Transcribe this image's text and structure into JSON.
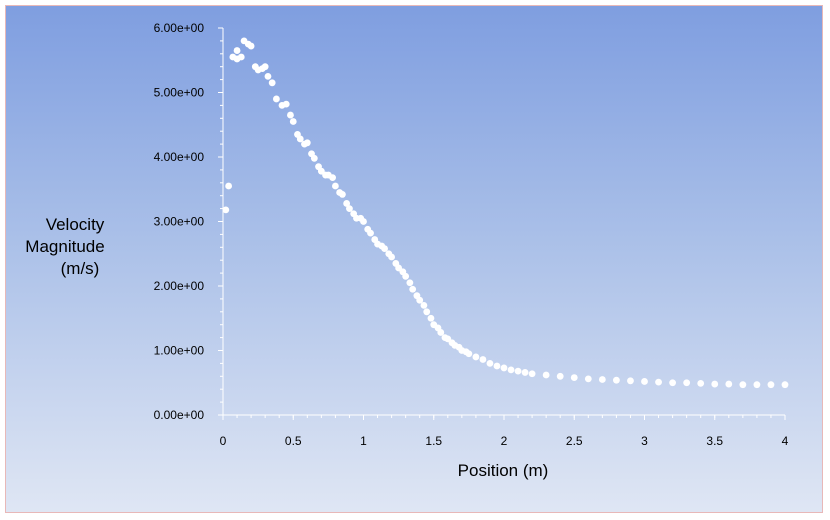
{
  "chart_data": {
    "type": "scatter",
    "xlabel": "Position (m)",
    "ylabel": [
      "Velocity",
      "Magnitude",
      "(m/s)"
    ],
    "xlim": [
      0,
      4
    ],
    "ylim": [
      0,
      6
    ],
    "x_ticks": [
      0,
      0.5,
      1,
      1.5,
      2,
      2.5,
      3,
      3.5,
      4
    ],
    "x_tick_labels": [
      "0",
      "0.5",
      "1",
      "1.5",
      "2",
      "2.5",
      "3",
      "3.5",
      "4"
    ],
    "y_ticks": [
      0,
      1,
      2,
      3,
      4,
      5,
      6
    ],
    "y_tick_labels": [
      "0.00e+00",
      "1.00e+00",
      "2.00e+00",
      "3.00e+00",
      "4.00e+00",
      "5.00e+00",
      "6.00e+00"
    ],
    "grid": false,
    "marker_color": "#ffffff",
    "series": [
      {
        "points": [
          [
            0.02,
            3.18
          ],
          [
            0.04,
            3.55
          ],
          [
            0.07,
            5.55
          ],
          [
            0.1,
            5.52
          ],
          [
            0.1,
            5.65
          ],
          [
            0.13,
            5.55
          ],
          [
            0.15,
            5.8
          ],
          [
            0.18,
            5.75
          ],
          [
            0.2,
            5.72
          ],
          [
            0.23,
            5.4
          ],
          [
            0.25,
            5.35
          ],
          [
            0.28,
            5.37
          ],
          [
            0.3,
            5.4
          ],
          [
            0.32,
            5.25
          ],
          [
            0.35,
            5.15
          ],
          [
            0.38,
            4.9
          ],
          [
            0.42,
            4.8
          ],
          [
            0.45,
            4.82
          ],
          [
            0.48,
            4.65
          ],
          [
            0.5,
            4.55
          ],
          [
            0.53,
            4.35
          ],
          [
            0.55,
            4.28
          ],
          [
            0.58,
            4.2
          ],
          [
            0.6,
            4.22
          ],
          [
            0.63,
            4.05
          ],
          [
            0.65,
            3.98
          ],
          [
            0.68,
            3.85
          ],
          [
            0.7,
            3.78
          ],
          [
            0.73,
            3.72
          ],
          [
            0.75,
            3.72
          ],
          [
            0.78,
            3.68
          ],
          [
            0.8,
            3.55
          ],
          [
            0.83,
            3.45
          ],
          [
            0.85,
            3.42
          ],
          [
            0.88,
            3.28
          ],
          [
            0.9,
            3.2
          ],
          [
            0.93,
            3.12
          ],
          [
            0.95,
            3.05
          ],
          [
            0.98,
            3.05
          ],
          [
            1.0,
            3.0
          ],
          [
            1.03,
            2.88
          ],
          [
            1.05,
            2.82
          ],
          [
            1.08,
            2.72
          ],
          [
            1.1,
            2.65
          ],
          [
            1.13,
            2.62
          ],
          [
            1.15,
            2.58
          ],
          [
            1.18,
            2.5
          ],
          [
            1.2,
            2.45
          ],
          [
            1.23,
            2.35
          ],
          [
            1.25,
            2.28
          ],
          [
            1.28,
            2.22
          ],
          [
            1.3,
            2.15
          ],
          [
            1.33,
            2.05
          ],
          [
            1.35,
            1.95
          ],
          [
            1.38,
            1.85
          ],
          [
            1.4,
            1.78
          ],
          [
            1.43,
            1.7
          ],
          [
            1.45,
            1.6
          ],
          [
            1.48,
            1.5
          ],
          [
            1.5,
            1.4
          ],
          [
            1.53,
            1.35
          ],
          [
            1.55,
            1.28
          ],
          [
            1.58,
            1.2
          ],
          [
            1.6,
            1.18
          ],
          [
            1.63,
            1.12
          ],
          [
            1.65,
            1.08
          ],
          [
            1.68,
            1.05
          ],
          [
            1.7,
            1.0
          ],
          [
            1.73,
            0.98
          ],
          [
            1.75,
            0.95
          ],
          [
            1.8,
            0.9
          ],
          [
            1.85,
            0.86
          ],
          [
            1.9,
            0.8
          ],
          [
            1.95,
            0.76
          ],
          [
            2.0,
            0.73
          ],
          [
            2.05,
            0.7
          ],
          [
            2.1,
            0.68
          ],
          [
            2.15,
            0.66
          ],
          [
            2.2,
            0.64
          ],
          [
            2.3,
            0.62
          ],
          [
            2.4,
            0.6
          ],
          [
            2.5,
            0.58
          ],
          [
            2.6,
            0.56
          ],
          [
            2.7,
            0.55
          ],
          [
            2.8,
            0.54
          ],
          [
            2.9,
            0.53
          ],
          [
            3.0,
            0.52
          ],
          [
            3.1,
            0.51
          ],
          [
            3.2,
            0.5
          ],
          [
            3.3,
            0.5
          ],
          [
            3.4,
            0.49
          ],
          [
            3.5,
            0.48
          ],
          [
            3.6,
            0.48
          ],
          [
            3.7,
            0.47
          ],
          [
            3.8,
            0.47
          ],
          [
            3.9,
            0.47
          ],
          [
            4.0,
            0.47
          ]
        ]
      }
    ]
  }
}
